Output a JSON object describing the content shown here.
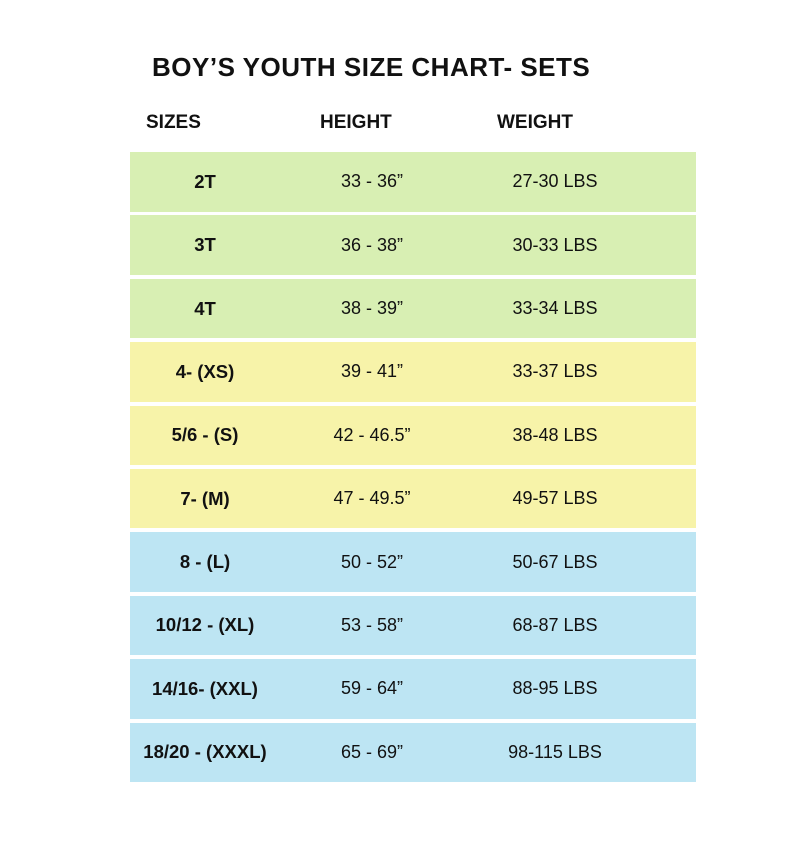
{
  "title": "BOY’S YOUTH SIZE CHART- SETS",
  "headers": {
    "size": "SIZES",
    "height": "HEIGHT",
    "weight": "WEIGHT"
  },
  "colors": {
    "toddler": "#d8efb3",
    "small_medium": "#f7f3a9",
    "large": "#bde5f3"
  },
  "rows": [
    {
      "size": "2T",
      "height": "33 - 36”",
      "weight": "27-30 LBS",
      "group": "toddler"
    },
    {
      "size": "3T",
      "height": "36 - 38”",
      "weight": "30-33 LBS",
      "group": "toddler"
    },
    {
      "size": "4T",
      "height": "38 - 39”",
      "weight": "33-34 LBS",
      "group": "toddler"
    },
    {
      "size": "4- (XS)",
      "height": "39 - 41”",
      "weight": "33-37 LBS",
      "group": "small_medium"
    },
    {
      "size": "5/6 - (S)",
      "height": "42 - 46.5”",
      "weight": "38-48 LBS",
      "group": "small_medium"
    },
    {
      "size": "7- (M)",
      "height": "47 - 49.5”",
      "weight": "49-57 LBS",
      "group": "small_medium"
    },
    {
      "size": "8 - (L)",
      "height": "50 - 52”",
      "weight": "50-67 LBS",
      "group": "large"
    },
    {
      "size": "10/12 - (XL)",
      "height": "53 - 58”",
      "weight": "68-87 LBS",
      "group": "large"
    },
    {
      "size": "14/16- (XXL)",
      "height": "59 - 64”",
      "weight": "88-95 LBS",
      "group": "large"
    },
    {
      "size": "18/20 - (XXXL)",
      "height": "65 - 69”",
      "weight": "98-115 LBS",
      "group": "large"
    }
  ]
}
